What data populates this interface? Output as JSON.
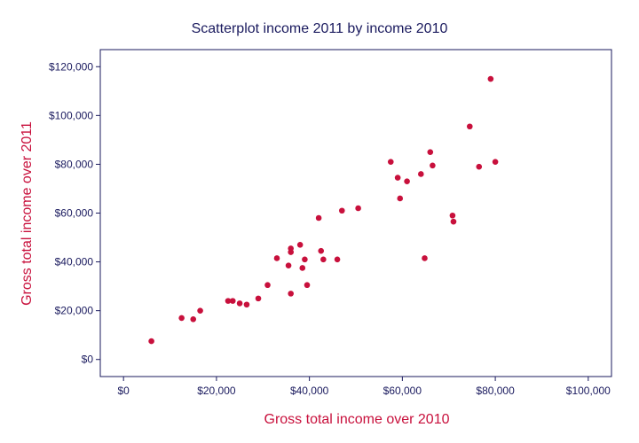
{
  "chart_data": {
    "type": "scatter",
    "title": "Scatterplot income 2011 by income 2010",
    "xlabel": "Gross total income over 2010",
    "ylabel": "Gross total income over 2011",
    "xlim": [
      -5000,
      105000
    ],
    "ylim": [
      -7000,
      127000
    ],
    "x_ticks": [
      0,
      20000,
      40000,
      60000,
      80000,
      100000
    ],
    "x_tick_labels": [
      "$0",
      "$20,000",
      "$40,000",
      "$60,000",
      "$80,000",
      "$100,000"
    ],
    "y_ticks": [
      0,
      20000,
      40000,
      60000,
      80000,
      100000,
      120000
    ],
    "y_tick_labels": [
      "$0",
      "$20,000",
      "$40,000",
      "$60,000",
      "$80,000",
      "$100,000",
      "$120,000"
    ],
    "grid": false,
    "marker_color": "#c8103c",
    "axis_color": "#1a1a5e",
    "points": [
      [
        6000,
        7500
      ],
      [
        12500,
        17000
      ],
      [
        15000,
        16500
      ],
      [
        16500,
        20000
      ],
      [
        22500,
        24000
      ],
      [
        23500,
        24000
      ],
      [
        25000,
        23000
      ],
      [
        26500,
        22500
      ],
      [
        29000,
        25000
      ],
      [
        31000,
        30500
      ],
      [
        33000,
        41500
      ],
      [
        35500,
        38500
      ],
      [
        36000,
        27000
      ],
      [
        36000,
        44000
      ],
      [
        36000,
        45500
      ],
      [
        38000,
        47000
      ],
      [
        38500,
        37500
      ],
      [
        39000,
        41000
      ],
      [
        39500,
        30500
      ],
      [
        42000,
        58000
      ],
      [
        42500,
        44500
      ],
      [
        43000,
        41000
      ],
      [
        46000,
        41000
      ],
      [
        47000,
        61000
      ],
      [
        50500,
        62000
      ],
      [
        57500,
        81000
      ],
      [
        59000,
        74500
      ],
      [
        59500,
        66000
      ],
      [
        61000,
        73000
      ],
      [
        64000,
        76000
      ],
      [
        64800,
        41500
      ],
      [
        66000,
        85000
      ],
      [
        66500,
        79500
      ],
      [
        70800,
        59000
      ],
      [
        71000,
        56500
      ],
      [
        74500,
        95500
      ],
      [
        76500,
        79000
      ],
      [
        79000,
        115000
      ],
      [
        80000,
        81000
      ]
    ]
  }
}
